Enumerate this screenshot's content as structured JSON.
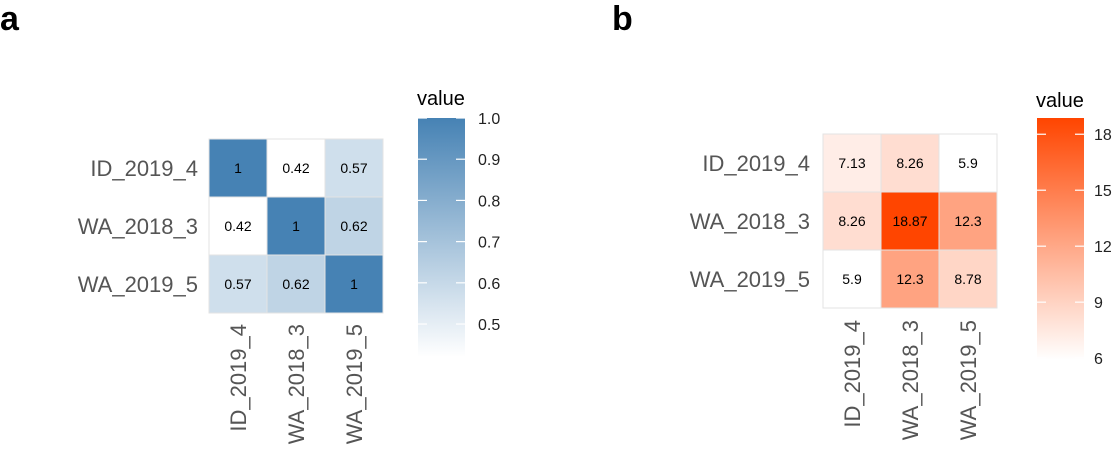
{
  "chart_data": [
    {
      "type": "heatmap",
      "panel_label": "a",
      "rows": [
        "ID_2019_4",
        "WA_2018_3",
        "WA_2019_5"
      ],
      "cols": [
        "ID_2019_4",
        "WA_2018_3",
        "WA_2019_5"
      ],
      "values": [
        [
          1,
          0.42,
          0.57
        ],
        [
          0.42,
          1,
          0.62
        ],
        [
          0.57,
          0.62,
          1
        ]
      ],
      "value_labels": [
        [
          "1",
          "0.42",
          "0.57"
        ],
        [
          "0.42",
          "1",
          "0.62"
        ],
        [
          "0.57",
          "0.62",
          "1"
        ]
      ],
      "colorscale": {
        "low": "#ffffff",
        "high": "#4682b4",
        "min": 0.42,
        "max": 1.0
      },
      "legend": {
        "title": "value",
        "ticks": [
          "1.0",
          "0.9",
          "0.8",
          "0.7",
          "0.6",
          "0.5"
        ],
        "tick_values": [
          1.0,
          0.9,
          0.8,
          0.7,
          0.6,
          0.5
        ]
      }
    },
    {
      "type": "heatmap",
      "panel_label": "b",
      "rows": [
        "ID_2019_4",
        "WA_2018_3",
        "WA_2019_5"
      ],
      "cols": [
        "ID_2019_4",
        "WA_2018_3",
        "WA_2019_5"
      ],
      "values": [
        [
          7.13,
          8.26,
          5.9
        ],
        [
          8.26,
          18.87,
          12.3
        ],
        [
          5.9,
          12.3,
          8.78
        ]
      ],
      "value_labels": [
        [
          "7.13",
          "8.26",
          "5.9"
        ],
        [
          "8.26",
          "18.87",
          "12.3"
        ],
        [
          "5.9",
          "12.3",
          "8.78"
        ]
      ],
      "colorscale": {
        "low": "#ffffff",
        "high": "#ff4500",
        "min": 5.9,
        "max": 18.87
      },
      "legend": {
        "title": "value",
        "ticks": [
          "18",
          "15",
          "12",
          "9",
          "6"
        ],
        "tick_values": [
          18,
          15,
          12,
          9,
          6
        ]
      }
    }
  ]
}
